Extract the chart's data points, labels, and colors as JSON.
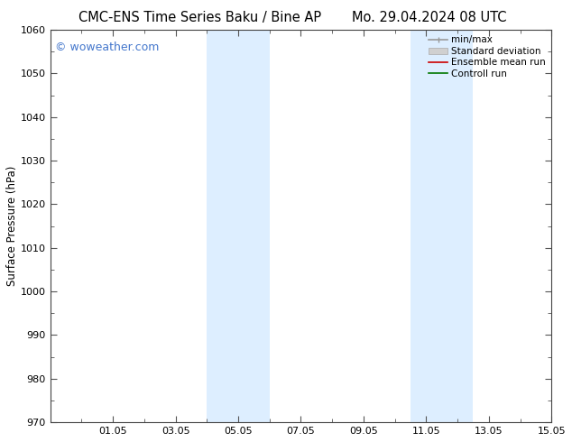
{
  "title_left": "CMC-ENS Time Series Baku / Bine AP",
  "title_right": "Mo. 29.04.2024 08 UTC",
  "ylabel": "Surface Pressure (hPa)",
  "xlim": [
    29.0,
    45.0
  ],
  "ylim": [
    970,
    1060
  ],
  "yticks": [
    970,
    980,
    990,
    1000,
    1010,
    1020,
    1030,
    1040,
    1050,
    1060
  ],
  "xtick_labels": [
    "01.05",
    "03.05",
    "05.05",
    "07.05",
    "09.05",
    "11.05",
    "13.05",
    "15.05"
  ],
  "xtick_positions": [
    31,
    33,
    35,
    37,
    39,
    41,
    43,
    45
  ],
  "shaded_bands": [
    {
      "x_start": 34.0,
      "x_end": 36.0
    },
    {
      "x_start": 40.5,
      "x_end": 42.5
    }
  ],
  "shaded_color": "#ddeeff",
  "watermark_text": "© woweather.com",
  "watermark_color": "#4477cc",
  "legend_items": [
    {
      "label": "min/max",
      "color": "#999999",
      "lw": 1.2
    },
    {
      "label": "Standard deviation",
      "color": "#cccccc",
      "lw": 6
    },
    {
      "label": "Ensemble mean run",
      "color": "#cc0000",
      "lw": 1.2
    },
    {
      "label": "Controll run",
      "color": "#007700",
      "lw": 1.2
    }
  ],
  "bg_color": "#ffffff",
  "title_fontsize": 10.5,
  "label_fontsize": 8.5,
  "tick_fontsize": 8,
  "legend_fontsize": 7.5,
  "watermark_fontsize": 9
}
